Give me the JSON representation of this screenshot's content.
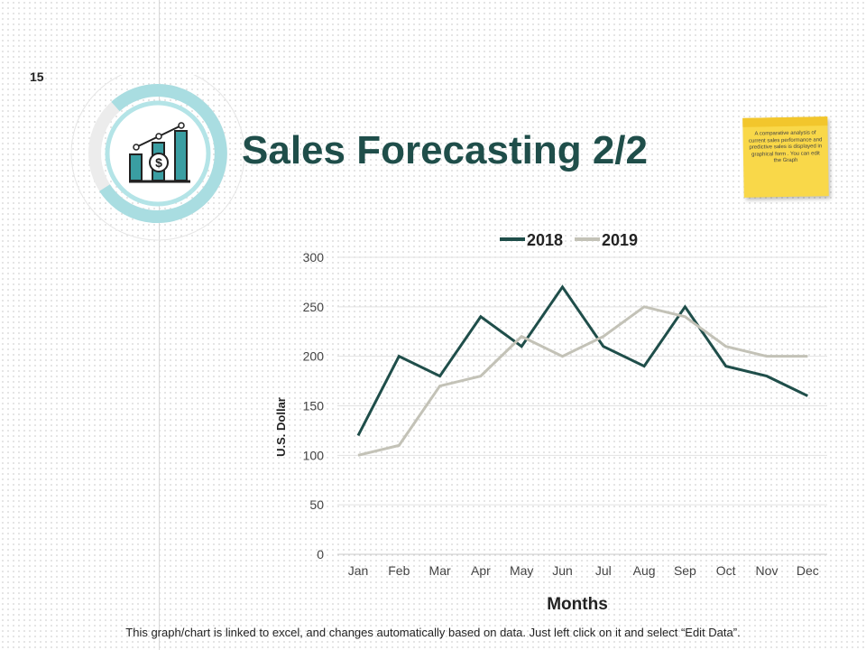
{
  "page": {
    "number": "15",
    "title": "Sales Forecasting 2/2",
    "note": "A comparative analysis of current sales performance and predictive sales is displayed in graphical form . You can edit the Graph",
    "footer": "This graph/chart is linked to excel, and changes automatically based on data. Just left click on it and select “Edit Data”."
  },
  "colors": {
    "title": "#1f4e4a",
    "series_2018": "#1f4e4a",
    "series_2019": "#c3c2b7",
    "icon_teal": "#3a9ea2",
    "ring_light": "#a9dde1",
    "ring_gray": "#ececec"
  },
  "icons": [
    "bar-chart-dollar-icon"
  ],
  "chart_data": {
    "type": "line",
    "xlabel": "Months",
    "ylabel": "U.S. Dollar",
    "categories": [
      "Jan",
      "Feb",
      "Mar",
      "Apr",
      "May",
      "Jun",
      "Jul",
      "Aug",
      "Sep",
      "Oct",
      "Nov",
      "Dec"
    ],
    "ylim": [
      0,
      300
    ],
    "yticks": [
      0,
      50,
      100,
      150,
      200,
      250,
      300
    ],
    "legend_position": "top",
    "grid": true,
    "series": [
      {
        "name": "2018",
        "values": [
          120,
          200,
          180,
          240,
          210,
          270,
          210,
          190,
          250,
          190,
          180,
          160
        ]
      },
      {
        "name": "2019",
        "values": [
          100,
          110,
          170,
          180,
          220,
          200,
          220,
          250,
          240,
          210,
          200,
          200
        ]
      }
    ]
  }
}
